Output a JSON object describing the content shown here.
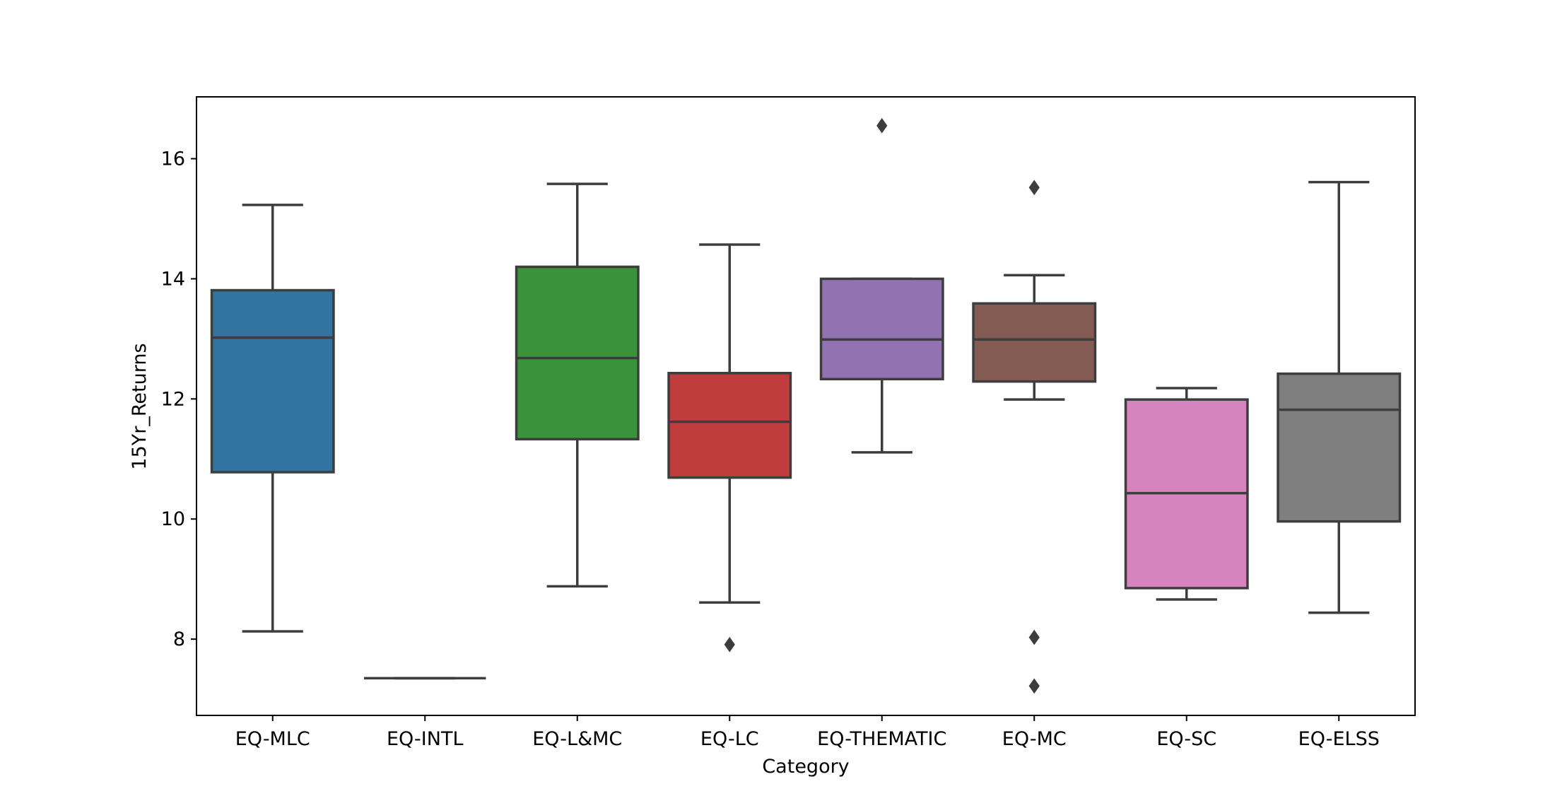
{
  "chart_data": {
    "type": "boxplot",
    "title": "",
    "xlabel": "Category",
    "ylabel": "15Yr_Returns",
    "ylim": [
      6.73,
      17.03
    ],
    "yticks": [
      8,
      10,
      12,
      14,
      16
    ],
    "grid": false,
    "categories": [
      "EQ-MLC",
      "EQ-INTL",
      "EQ-L&MC",
      "EQ-LC",
      "EQ-THEMATIC",
      "EQ-MC",
      "EQ-SC",
      "EQ-ELSS"
    ],
    "boxes": [
      {
        "category": "EQ-MLC",
        "whisker_low": 8.13,
        "q1": 10.78,
        "median": 13.02,
        "q3": 13.81,
        "whisker_high": 15.23,
        "outliers": [],
        "color": "#3274a1"
      },
      {
        "category": "EQ-INTL",
        "whisker_low": 7.35,
        "q1": 7.35,
        "median": 7.35,
        "q3": 7.35,
        "whisker_high": 7.35,
        "outliers": [],
        "color": "#e1812c"
      },
      {
        "category": "EQ-L&MC",
        "whisker_low": 8.88,
        "q1": 11.33,
        "median": 12.68,
        "q3": 14.2,
        "whisker_high": 15.58,
        "outliers": [],
        "color": "#3a923a"
      },
      {
        "category": "EQ-LC",
        "whisker_low": 8.61,
        "q1": 10.69,
        "median": 11.62,
        "q3": 12.43,
        "whisker_high": 14.57,
        "outliers": [
          7.91
        ],
        "color": "#c03d3e"
      },
      {
        "category": "EQ-THEMATIC",
        "whisker_low": 11.11,
        "q1": 12.33,
        "median": 12.99,
        "q3": 14.0,
        "whisker_high": 14.0,
        "outliers": [
          16.55
        ],
        "color": "#9372b2"
      },
      {
        "category": "EQ-MC",
        "whisker_low": 11.99,
        "q1": 12.29,
        "median": 12.99,
        "q3": 13.59,
        "whisker_high": 14.06,
        "outliers": [
          15.52,
          8.03,
          7.22
        ],
        "color": "#845b53"
      },
      {
        "category": "EQ-SC",
        "whisker_low": 8.66,
        "q1": 8.85,
        "median": 10.43,
        "q3": 11.99,
        "whisker_high": 12.18,
        "outliers": [],
        "color": "#d684bd"
      },
      {
        "category": "EQ-ELSS",
        "whisker_low": 8.44,
        "q1": 9.96,
        "median": 11.82,
        "q3": 12.42,
        "whisker_high": 15.61,
        "outliers": [],
        "color": "#7f7f7f"
      }
    ],
    "line_color": "#3d3d3d"
  }
}
